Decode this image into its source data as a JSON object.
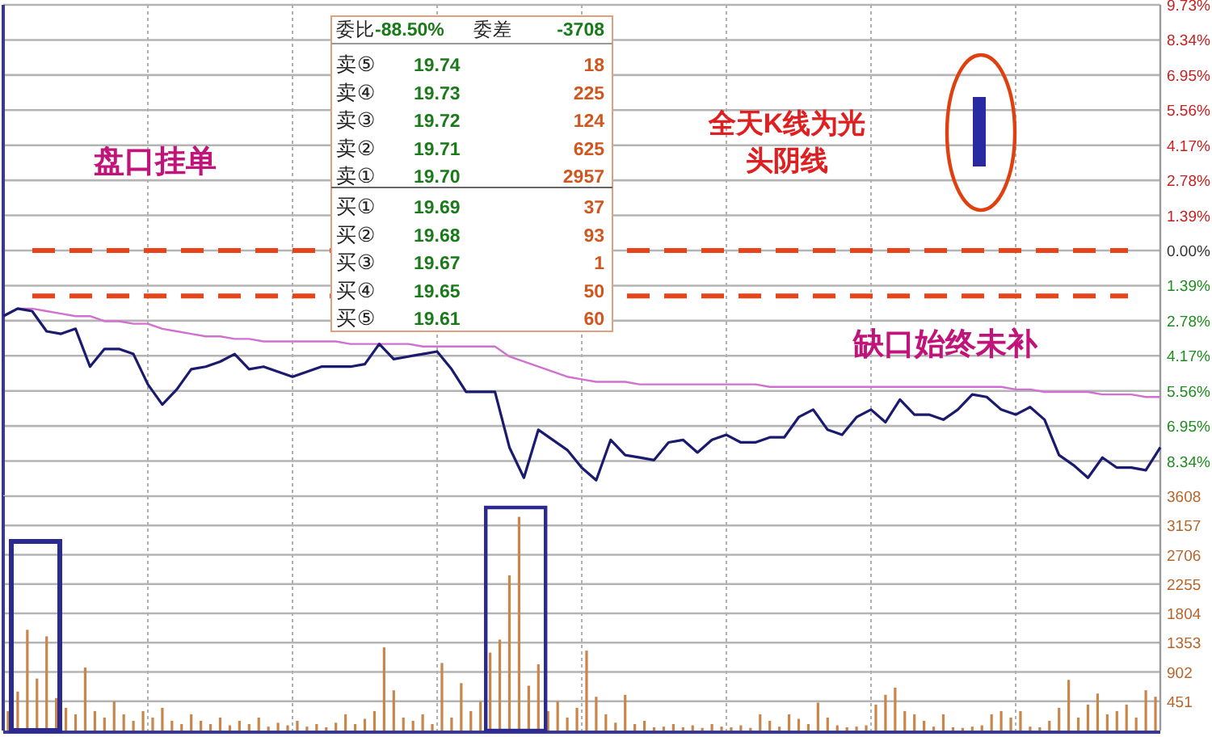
{
  "chart_data": [
    {
      "type": "line",
      "categories": [
        null,
        null,
        null,
        null,
        null,
        null,
        null,
        null,
        null,
        null,
        null,
        null,
        null,
        null,
        null,
        null,
        null,
        null,
        null,
        null,
        null,
        null,
        null,
        null,
        null,
        null,
        null,
        null,
        null,
        null,
        null,
        null,
        null,
        null,
        null,
        null,
        null,
        null,
        null,
        null,
        null,
        null,
        null,
        null,
        null,
        null,
        null,
        null,
        null,
        null,
        null,
        null,
        null,
        null,
        null,
        null,
        null,
        null,
        null,
        null,
        null,
        null,
        null,
        null,
        null,
        null,
        null,
        null,
        null,
        null,
        null,
        null,
        null,
        null,
        null,
        null,
        null,
        null,
        null,
        null,
        null
      ],
      "series": [
        {
          "color": "#1a1a6e",
          "values": [
            -2.6,
            -2.3,
            -2.4,
            -3.2,
            -3.3,
            -3.1,
            -4.6,
            -3.9,
            -3.9,
            -4.1,
            -5.3,
            -6.1,
            -5.5,
            -4.7,
            -4.6,
            -4.4,
            -4.1,
            -4.7,
            -4.6,
            -4.8,
            -5.0,
            -4.8,
            -4.6,
            -4.6,
            -4.6,
            -4.5,
            -3.7,
            -4.3,
            -4.2,
            -4.1,
            -4.0,
            -4.7,
            -5.6,
            -5.6,
            -5.6,
            -7.8,
            -9.0,
            -7.1,
            -7.5,
            -7.9,
            -8.6,
            -9.1,
            -7.5,
            -8.1,
            -8.2,
            -8.3,
            -7.6,
            -7.5,
            -8.0,
            -7.5,
            -7.3,
            -7.6,
            -7.6,
            -7.4,
            -7.4,
            -6.6,
            -6.3,
            -7.1,
            -7.3,
            -6.6,
            -6.3,
            -6.8,
            -5.9,
            -6.5,
            -6.5,
            -6.7,
            -6.3,
            -5.7,
            -5.8,
            -6.3,
            -6.5,
            -6.2,
            -6.7,
            -8.1,
            -8.5,
            -9.0,
            -8.2,
            -8.6,
            -8.6,
            -8.7,
            -7.8
          ]
        },
        {
          "color": "#d070d0",
          "values": [
            -2.6,
            -2.3,
            -2.3,
            -2.4,
            -2.5,
            -2.6,
            -2.6,
            -2.8,
            -2.8,
            -2.9,
            -2.9,
            -3.1,
            -3.2,
            -3.3,
            -3.4,
            -3.4,
            -3.5,
            -3.5,
            -3.6,
            -3.6,
            -3.6,
            -3.6,
            -3.6,
            -3.6,
            -3.7,
            -3.7,
            -3.7,
            -3.7,
            -3.7,
            -3.8,
            -3.8,
            -3.8,
            -3.8,
            -3.8,
            -3.8,
            -4.2,
            -4.4,
            -4.6,
            -4.8,
            -5.0,
            -5.1,
            -5.2,
            -5.2,
            -5.2,
            -5.3,
            -5.3,
            -5.3,
            -5.3,
            -5.3,
            -5.3,
            -5.3,
            -5.3,
            -5.3,
            -5.4,
            -5.4,
            -5.4,
            -5.4,
            -5.4,
            -5.4,
            -5.4,
            -5.4,
            -5.4,
            -5.4,
            -5.4,
            -5.4,
            -5.4,
            -5.4,
            -5.4,
            -5.4,
            -5.4,
            -5.5,
            -5.5,
            -5.6,
            -5.6,
            -5.6,
            -5.6,
            -5.7,
            -5.7,
            -5.7,
            -5.8,
            -5.8
          ]
        }
      ],
      "ylim": [
        -9.73,
        9.73
      ],
      "yticks": [
        {
          "value": 9.73,
          "label": "9.73%"
        },
        {
          "value": 8.34,
          "label": "8.34%"
        },
        {
          "value": 6.95,
          "label": "6.95%"
        },
        {
          "value": 5.56,
          "label": "5.56%"
        },
        {
          "value": 4.17,
          "label": "4.17%"
        },
        {
          "value": 2.78,
          "label": "2.78%"
        },
        {
          "value": 1.39,
          "label": "1.39%"
        },
        {
          "value": 0,
          "label": "0.00%"
        },
        {
          "value": -1.39,
          "label": "1.39%"
        },
        {
          "value": -2.78,
          "label": "2.78%"
        },
        {
          "value": -4.17,
          "label": "4.17%"
        },
        {
          "value": -5.56,
          "label": "5.56%"
        },
        {
          "value": -6.95,
          "label": "6.95%"
        },
        {
          "value": -8.34,
          "label": "8.34%"
        }
      ],
      "grid": true,
      "ref_lines": [
        {
          "axis": "y",
          "value": 0,
          "color": "#e8441c",
          "line_style": "dashed"
        },
        {
          "axis": "y",
          "value": -1.8,
          "color": "#e8441c",
          "line_style": "dashed"
        }
      ],
      "annotations": [
        "委比",
        "-88.50%",
        "委差",
        "-3708",
        "卖⑤",
        "19.74",
        "18",
        "卖④",
        "19.73",
        "225",
        "卖③",
        "19.72",
        "124",
        "卖②",
        "19.71",
        "625",
        "卖①",
        "19.70",
        "2957",
        "买①",
        "19.69",
        "37",
        "买②",
        "19.68",
        "93",
        "买③",
        "19.67",
        "1",
        "买④",
        "19.65",
        "50",
        "买⑤",
        "19.61",
        "60",
        "盘口挂单",
        "全天K线为光头阴线",
        "缺口始终未补"
      ]
    },
    {
      "type": "bar",
      "categories": [
        null,
        null,
        null,
        null,
        null,
        null,
        null,
        null,
        null,
        null,
        null,
        null,
        null,
        null,
        null,
        null,
        null,
        null,
        null,
        null,
        null,
        null,
        null,
        null,
        null,
        null,
        null,
        null,
        null,
        null,
        null,
        null,
        null,
        null,
        null,
        null,
        null,
        null,
        null,
        null,
        null,
        null,
        null,
        null,
        null,
        null,
        null,
        null,
        null,
        null,
        null,
        null,
        null,
        null,
        null,
        null,
        null,
        null,
        null,
        null,
        null,
        null,
        null,
        null,
        null,
        null,
        null,
        null,
        null,
        null,
        null,
        null,
        null,
        null,
        null,
        null,
        null,
        null,
        null,
        null,
        null,
        null,
        null,
        null,
        null,
        null,
        null,
        null,
        null,
        null,
        null,
        null,
        null,
        null,
        null,
        null,
        null,
        null,
        null,
        null,
        null,
        null,
        null,
        null,
        null,
        null,
        null,
        null,
        null,
        null,
        null,
        null,
        null,
        null,
        null,
        null,
        null,
        null,
        null,
        null
      ],
      "color": "#c8864a",
      "values": [
        300,
        600,
        1550,
        800,
        1450,
        500,
        350,
        250,
        970,
        300,
        200,
        450,
        250,
        150,
        300,
        200,
        350,
        150,
        100,
        250,
        150,
        100,
        200,
        80,
        150,
        100,
        200,
        60,
        120,
        80,
        150,
        60,
        100,
        50,
        120,
        250,
        100,
        180,
        300,
        1280,
        620,
        200,
        150,
        250,
        100,
        1040,
        200,
        730,
        300,
        450,
        1200,
        1400,
        2390,
        3290,
        690,
        1020,
        300,
        450,
        200,
        350,
        1230,
        520,
        250,
        120,
        550,
        100,
        150,
        50,
        60,
        100,
        50,
        80,
        40,
        100,
        60,
        50,
        80,
        40,
        250,
        150,
        60,
        250,
        180,
        100,
        430,
        200,
        80,
        50,
        60,
        80,
        400,
        550,
        660,
        300,
        250,
        150,
        60,
        250,
        50,
        40,
        60,
        80,
        250,
        300,
        200,
        300,
        60,
        50,
        150,
        350,
        780,
        200,
        400,
        570,
        250,
        300,
        400,
        200,
        620,
        520
      ],
      "ylim": [
        0,
        3608
      ],
      "yticks": [
        451,
        902,
        1353,
        1804,
        2255,
        2706,
        3157,
        3608
      ],
      "grid": true
    }
  ]
}
